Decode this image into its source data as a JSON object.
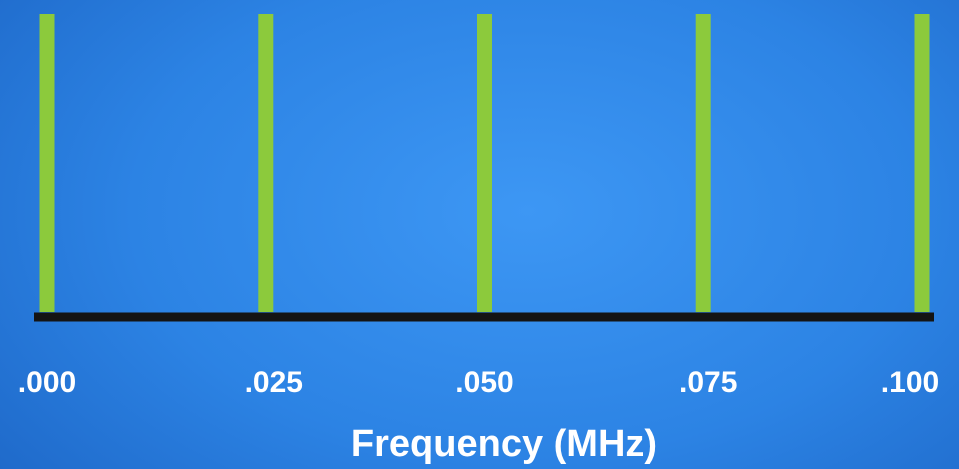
{
  "chart_data": {
    "type": "bar",
    "xlabel": "Frequency (MHz)",
    "ylabel": "",
    "title": "",
    "x": [
      0.0,
      0.025,
      0.05,
      0.075,
      0.1
    ],
    "values": [
      1,
      1,
      1,
      1,
      1
    ],
    "tick_labels": [
      ".000",
      ".025",
      ".050",
      ".075",
      ".100"
    ],
    "xlim": [
      0.0,
      0.1
    ],
    "ylim": [
      0,
      1
    ],
    "grid": false,
    "colors": {
      "bars": "#8cca3c",
      "axis": "#141414",
      "background": "#2f86e8",
      "text": "#ffffff"
    }
  }
}
